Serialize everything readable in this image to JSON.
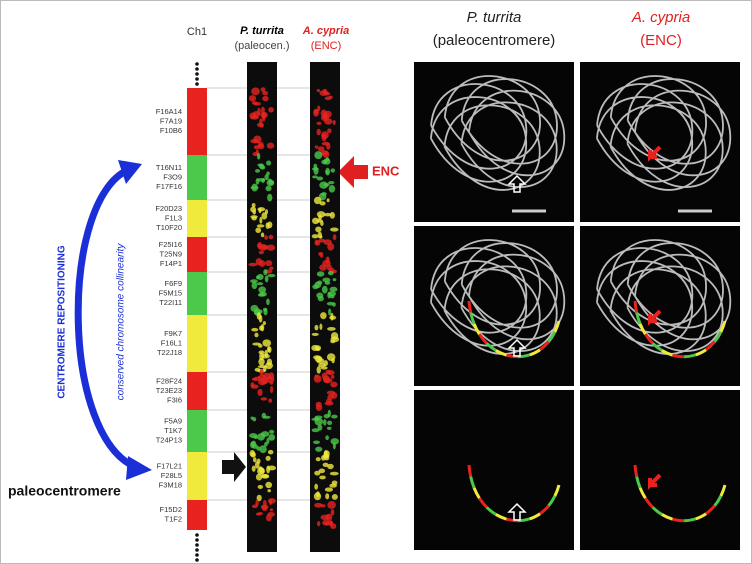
{
  "chromosome": {
    "label": "Ch1",
    "bands": [
      {
        "color": "#e8231f",
        "labels": [
          "F16A14",
          "F7A19",
          "F10B6"
        ]
      },
      {
        "color": "#4cc94a",
        "labels": [
          "T16N11",
          "F3O9",
          "F17F16"
        ]
      },
      {
        "color": "#f0ea3c",
        "labels": [
          "F20D23",
          "F1L3",
          "T10F20"
        ]
      },
      {
        "color": "#e8231f",
        "labels": [
          "F25I16",
          "T25N9",
          "F14P1"
        ]
      },
      {
        "color": "#4cc94a",
        "labels": [
          "F6F9",
          "F5M15",
          "T22I11"
        ]
      },
      {
        "color": "#f0ea3c",
        "labels": [
          "F9K7",
          "F16L1",
          "T22J18"
        ]
      },
      {
        "color": "#e8231f",
        "labels": [
          "F28F24",
          "T23E23",
          "F3I6"
        ]
      },
      {
        "color": "#4cc94a",
        "labels": [
          "F5A9",
          "T1K7",
          "T24P13"
        ]
      },
      {
        "color": "#f0ea3c",
        "labels": [
          "F17L21",
          "F28L5",
          "F3M18"
        ]
      },
      {
        "color": "#e8231f",
        "labels": [
          "F15D2",
          "T1F2"
        ]
      }
    ]
  },
  "strips": [
    {
      "species": "P. turrita",
      "note": "(paleocen.)"
    },
    {
      "species": "A. cypria",
      "note": "(ENC)"
    }
  ],
  "panels": [
    {
      "species": "P. turrita",
      "note": "(paleocentromere)"
    },
    {
      "species": "A. cypria",
      "note": "(ENC)"
    }
  ],
  "annotations": {
    "enc": "ENC",
    "repositioning": "CENTROMERE REPOSITIONING",
    "collinearity": "conserved chromosome collinearity",
    "paleocentromere": "paleocentromere"
  }
}
